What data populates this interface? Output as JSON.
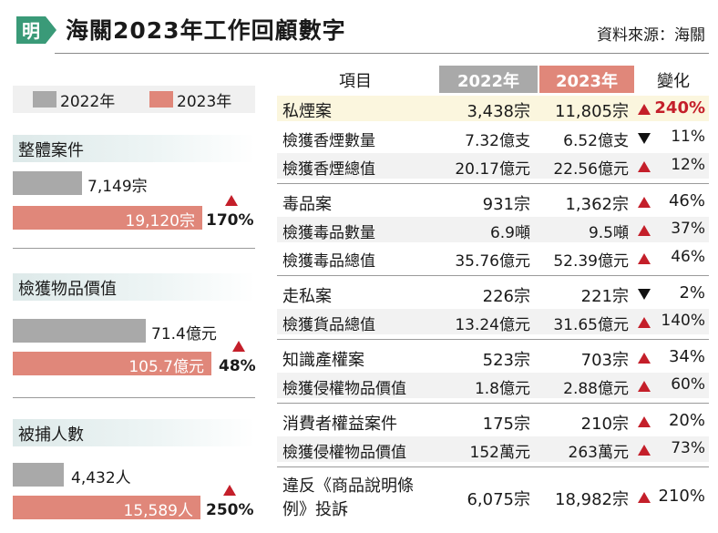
{
  "header": {
    "logo_text": "明",
    "title": "海關2023年工作回顧數字",
    "source": "資料來源：海關"
  },
  "legend": {
    "label_2022": "2022年",
    "label_2023": "2023年",
    "color_2022": "#a9a9a9",
    "color_2023": "#e0877a"
  },
  "summary": [
    {
      "title": "整體案件",
      "value_2022": "7,149宗",
      "value_2023": "19,120宗",
      "change": "170%",
      "num_2022": 7149,
      "num_2023": 19120
    },
    {
      "title": "檢獲物品價值",
      "value_2022": "71.4億元",
      "value_2023": "105.7億元",
      "change": "48%",
      "num_2022": 71.4,
      "num_2023": 105.7
    },
    {
      "title": "被捕人數",
      "value_2022": "4,432人",
      "value_2023": "15,589人",
      "change": "250%",
      "num_2022": 4432,
      "num_2023": 15589
    }
  ],
  "table": {
    "headers": {
      "item": "項目",
      "y2022": "2022年",
      "y2023": "2023年",
      "change": "變化"
    },
    "rows": [
      {
        "item": "私煙案",
        "v2022": "3,438宗",
        "v2023": "11,805宗",
        "direction": "up",
        "change": "240%"
      },
      {
        "item": "檢獲香煙數量",
        "v2022": "7.32億支",
        "v2023": "6.52億支",
        "direction": "down",
        "change": "11%"
      },
      {
        "item": "檢獲香煙總值",
        "v2022": "20.17億元",
        "v2023": "22.56億元",
        "direction": "up",
        "change": "12%"
      },
      {
        "item": "毒品案",
        "v2022": "931宗",
        "v2023": "1,362宗",
        "direction": "up",
        "change": "46%"
      },
      {
        "item": "檢獲毒品數量",
        "v2022": "6.9噸",
        "v2023": "9.5噸",
        "direction": "up",
        "change": "37%"
      },
      {
        "item": "檢獲毒品總值",
        "v2022": "35.76億元",
        "v2023": "52.39億元",
        "direction": "up",
        "change": "46%"
      },
      {
        "item": "走私案",
        "v2022": "226宗",
        "v2023": "221宗",
        "direction": "down",
        "change": "2%"
      },
      {
        "item": "檢獲貨品總值",
        "v2022": "13.24億元",
        "v2023": "31.65億元",
        "direction": "up",
        "change": "140%"
      },
      {
        "item": "知識產權案",
        "v2022": "523宗",
        "v2023": "703宗",
        "direction": "up",
        "change": "34%"
      },
      {
        "item": "檢獲侵權物品價值",
        "v2022": "1.8億元",
        "v2023": "2.88億元",
        "direction": "up",
        "change": "60%"
      },
      {
        "item": "消費者權益案件",
        "v2022": "175宗",
        "v2023": "210宗",
        "direction": "up",
        "change": "20%"
      },
      {
        "item": "檢獲侵權物品價值",
        "v2022": "152萬元",
        "v2023": "263萬元",
        "direction": "up",
        "change": "73%"
      },
      {
        "item": "違反《商品說明條例》投訴",
        "v2022": "6,075宗",
        "v2023": "18,982宗",
        "direction": "up",
        "change": "210%"
      }
    ]
  }
}
